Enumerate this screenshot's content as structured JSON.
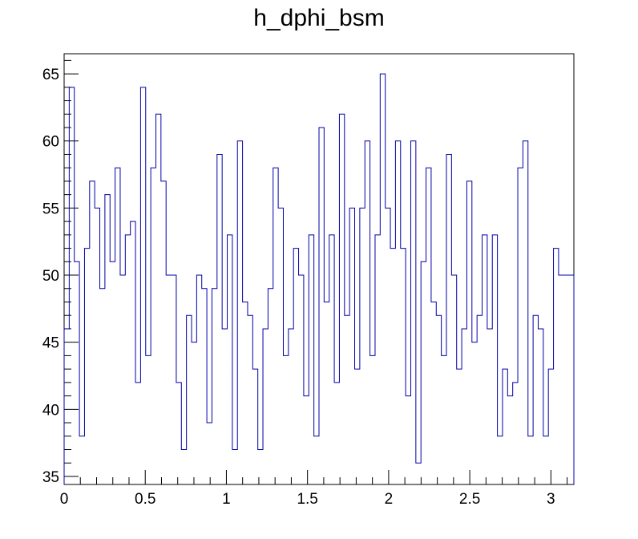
{
  "chart_data": {
    "type": "histogram",
    "title": "h_dphi_bsm",
    "xlabel": "",
    "ylabel": "",
    "xlim": [
      0,
      3.1416
    ],
    "ylim": [
      34.4,
      66.5
    ],
    "grid": false,
    "legend": "none",
    "series_color": "#0000aa",
    "x_ticks": [
      0,
      0.5,
      1,
      1.5,
      2,
      2.5,
      3
    ],
    "x_tick_labels": [
      "0",
      "0.5",
      "1",
      "1.5",
      "2",
      "2.5",
      "3"
    ],
    "y_ticks": [
      35,
      40,
      45,
      50,
      55,
      60,
      65
    ],
    "y_tick_labels": [
      "35",
      "40",
      "45",
      "50",
      "55",
      "60",
      "65"
    ],
    "bins": 100,
    "values": [
      46,
      64,
      51,
      38,
      52,
      57,
      55,
      49,
      56,
      51,
      58,
      50,
      53,
      54,
      42,
      64,
      44,
      58,
      62,
      57,
      50,
      50,
      42,
      37,
      47,
      45,
      50,
      49,
      39,
      49,
      59,
      46,
      53,
      37,
      60,
      48,
      47,
      43,
      37,
      46,
      49,
      58,
      55,
      44,
      46,
      52,
      50,
      41,
      53,
      38,
      61,
      48,
      53,
      42,
      62,
      47,
      55,
      43,
      55,
      60,
      44,
      53,
      65,
      55,
      52,
      60,
      52,
      41,
      60,
      36,
      51,
      58,
      48,
      47,
      44,
      59,
      50,
      43,
      46,
      57,
      45,
      47,
      53,
      46,
      53,
      38,
      43,
      41,
      42,
      58,
      60,
      38,
      47,
      46,
      38,
      43,
      52,
      50,
      50,
      50
    ]
  }
}
